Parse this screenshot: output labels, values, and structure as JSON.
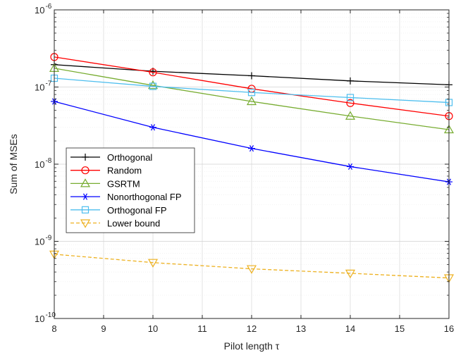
{
  "chart_data": {
    "type": "line",
    "xlabel": "Pilot length τ",
    "ylabel": "Sum of MSEs",
    "xlim": [
      8,
      16
    ],
    "ylim": [
      1e-10,
      1e-06
    ],
    "yscale": "log",
    "grid": true,
    "legend_position": "lower-left",
    "x": [
      8,
      10,
      12,
      14,
      16
    ],
    "x_ticks": [
      "8",
      "9",
      "10",
      "11",
      "12",
      "13",
      "14",
      "15",
      "16"
    ],
    "y_ticks": [
      {
        "base": "10",
        "exp": "-10"
      },
      {
        "base": "10",
        "exp": "-9"
      },
      {
        "base": "10",
        "exp": "-8"
      },
      {
        "base": "10",
        "exp": "-7"
      },
      {
        "base": "10",
        "exp": "-6"
      }
    ],
    "series": [
      {
        "name": "Orthogonal",
        "color": "#000000",
        "marker": "plus",
        "dash": "solid",
        "values": [
          1.95e-07,
          1.6e-07,
          1.4e-07,
          1.2e-07,
          1.07e-07
        ]
      },
      {
        "name": "Random",
        "color": "#ff0000",
        "marker": "circle",
        "dash": "solid",
        "values": [
          2.45e-07,
          1.55e-07,
          9.5e-08,
          6.2e-08,
          4.2e-08
        ]
      },
      {
        "name": "GSRTM",
        "color": "#77ac30",
        "marker": "triangle-up",
        "dash": "solid",
        "values": [
          1.75e-07,
          1.05e-07,
          6.5e-08,
          4.2e-08,
          2.8e-08
        ]
      },
      {
        "name": "Nonorthogonal FP",
        "color": "#0000ff",
        "marker": "asterisk",
        "dash": "solid",
        "values": [
          6.5e-08,
          3e-08,
          1.6e-08,
          9.3e-09,
          5.9e-09
        ]
      },
      {
        "name": "Orthogonal FP",
        "color": "#4dbeee",
        "marker": "square",
        "dash": "solid",
        "values": [
          1.3e-07,
          1.02e-07,
          8.5e-08,
          7.3e-08,
          6.3e-08
        ]
      },
      {
        "name": "Lower bound",
        "color": "#edb120",
        "marker": "triangle-down",
        "dash": "dashed",
        "values": [
          6.8e-10,
          5.3e-10,
          4.4e-10,
          3.85e-10,
          3.35e-10
        ]
      }
    ]
  }
}
